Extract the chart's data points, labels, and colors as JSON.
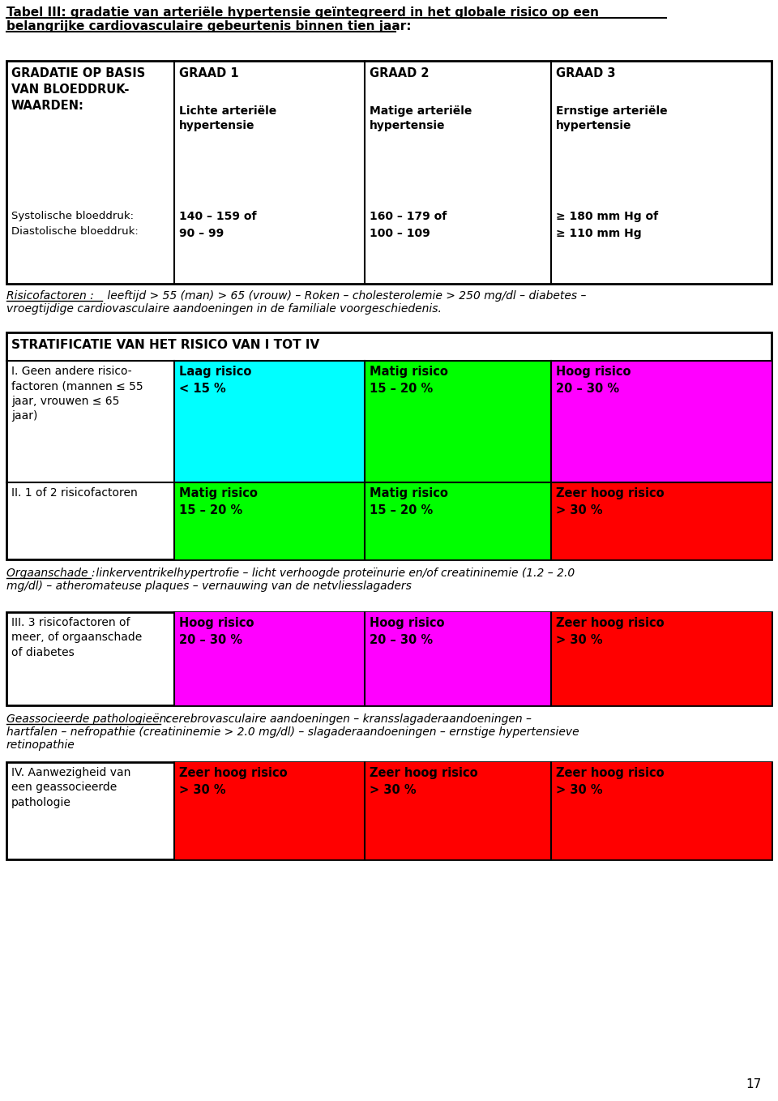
{
  "title_line1": "Tabel III: gradatie van arteriële hypertensie geïntegreerd in het globale risico op een",
  "title_line2": "belangrijke cardiovasculaire gebeurtenis binnen tien jaar:",
  "page_number": "17",
  "bg_color": "#ffffff",
  "border_color": "#000000",
  "top_table": {
    "col0_header": "GRADATIE OP BASIS\nVAN BLOEDDRUK-\nWAARDEN:",
    "col1_header": "GRAAD 1",
    "col2_header": "GRAAD 2",
    "col3_header": "GRAAD 3",
    "col1_sub": "Lichte arteriële\nhypertensie",
    "col2_sub": "Matige arteriële\nhypertensie",
    "col3_sub": "Ernstige arteriële\nhypertensie",
    "row_systolic_label": "Systolische bloeddruk:\nDiastolische bloeddruk:",
    "col1_values": "140 – 159 of\n90 – 99",
    "col2_values": "160 – 179 of\n100 – 109",
    "col3_values": "≥ 180 mm Hg of\n≥ 110 mm Hg"
  },
  "risico_label": "Risicofactoren :",
  "risico_rest": " leeftijd > 55 (man) > 65 (vrouw) – Roken – cholesterolemie > 250 mg/dl – diabetes –",
  "risico_line2": "vroegtijdige cardiovasculaire aandoeningen in de familiale voorgeschiedenis.",
  "stratificatie_header": "STRATIFICATIE VAN HET RISICO VAN I TOT IV",
  "strat_rows": [
    {
      "label": "I. Geen andere risico-\nfactoren (mannen ≤ 55\njaar, vrouwen ≤ 65\njaar)",
      "col1_text": "Laag risico\n< 15 %",
      "col1_bg": "#00ffff",
      "col2_text": "Matig risico\n15 – 20 %",
      "col2_bg": "#00ff00",
      "col3_text": "Hoog risico\n20 – 30 %",
      "col3_bg": "#ff00ff"
    },
    {
      "label": "II. 1 of 2 risicofactoren",
      "col1_text": "Matig risico\n15 – 20 %",
      "col1_bg": "#00ff00",
      "col2_text": "Matig risico\n15 – 20 %",
      "col2_bg": "#00ff00",
      "col3_text": "Zeer hoog risico\n> 30 %",
      "col3_bg": "#ff0000"
    }
  ],
  "orgaan_label": "Orgaanschade :",
  "orgaan_rest": " linkerventrikelhypertrofie – licht verhoogde proteïnurie en/of creatininemie (1.2 – 2.0",
  "orgaan_line2": "mg/dl) – atheromateuse plaques – vernauwing van de netvliesslagaders",
  "strat_rows2": [
    {
      "label": "III. 3 risicofactoren of\nmeer, of orgaanschade\nof diabetes",
      "col1_text": "Hoog risico\n20 – 30 %",
      "col1_bg": "#ff00ff",
      "col2_text": "Hoog risico\n20 – 30 %",
      "col2_bg": "#ff00ff",
      "col3_text": "Zeer hoog risico\n> 30 %",
      "col3_bg": "#ff0000"
    }
  ],
  "geass_label": "Geassocieerde pathologieën:",
  "geass_rest": " cerebrovasculaire aandoeningen – kransslagaderaandoeningen –",
  "geass_line2": "hartfalen – nefropathie (creatininemie > 2.0 mg/dl) – slagaderaandoeningen – ernstige hypertensieve",
  "geass_line3": "retinopathie",
  "strat_rows3": [
    {
      "label": "IV. Aanwezigheid van\neen geassocieerde\npathologie",
      "col1_text": "Zeer hoog risico\n> 30 %",
      "col1_bg": "#ff0000",
      "col2_text": "Zeer hoog risico\n> 30 %",
      "col2_bg": "#ff0000",
      "col3_text": "Zeer hoog risico\n> 30 %",
      "col3_bg": "#ff0000"
    }
  ]
}
